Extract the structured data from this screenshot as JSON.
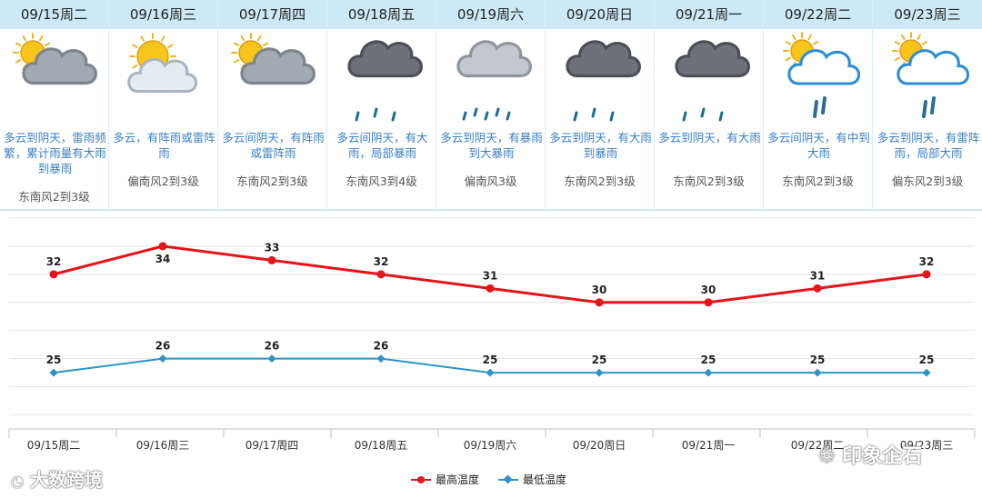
{
  "forecast": {
    "days": [
      {
        "date": "09/15周二",
        "icon": "partly-cloudy-sun-icon",
        "desc": "多云到阴天，雷雨频繁，累计雨量有大雨到暴雨",
        "wind": "东南风2到3级"
      },
      {
        "date": "09/16周三",
        "icon": "sun-behind-cloud-icon",
        "desc": "多云，有阵雨或雷阵雨",
        "wind": "偏南风2到3级"
      },
      {
        "date": "09/17周四",
        "icon": "partly-cloudy-sun-icon",
        "desc": "多云间阴天，有阵雨或雷阵雨",
        "wind": "东南风2到3级"
      },
      {
        "date": "09/18周五",
        "icon": "heavy-rain-cloud-icon",
        "desc": "多云间阴天，有大雨，局部暴雨",
        "wind": "东南风3到4级"
      },
      {
        "date": "09/19周六",
        "icon": "rainstorm-cloud-icon",
        "desc": "多云到阴天，有暴雨到大暴雨",
        "wind": "偏南风3级"
      },
      {
        "date": "09/20周日",
        "icon": "heavy-rain-cloud-icon",
        "desc": "多云到阴天，有大雨到暴雨",
        "wind": "东南风2到3级"
      },
      {
        "date": "09/21周一",
        "icon": "heavy-rain-cloud-icon",
        "desc": "多云到阴天，有大雨",
        "wind": "东南风2到3级"
      },
      {
        "date": "09/22周二",
        "icon": "sun-rain-cloud-icon",
        "desc": "多云间阴天，有中到大雨",
        "wind": "东南风2到3级"
      },
      {
        "date": "09/23周三",
        "icon": "sun-rain-cloud-icon",
        "desc": "多云到阴天，有雷阵雨，局部大雨",
        "wind": "偏东风2到3级"
      }
    ]
  },
  "chart_data": {
    "type": "line",
    "categories": [
      "09/15周二",
      "09/16周三",
      "09/17周四",
      "09/18周五",
      "09/19周六",
      "09/20周日",
      "09/21周一",
      "09/22周二",
      "09/23周三"
    ],
    "series": [
      {
        "name": "最高温度",
        "color": "#e4141b",
        "values": [
          32,
          34,
          33,
          32,
          31,
          30,
          30,
          31,
          32
        ]
      },
      {
        "name": "最低温度",
        "color": "#2d93c9",
        "values": [
          25,
          26,
          26,
          26,
          25,
          25,
          25,
          25,
          25
        ]
      }
    ],
    "ylim": [
      21,
      36
    ],
    "grid": true,
    "legend_position": "bottom-center",
    "title": "",
    "xlabel": "",
    "ylabel": ""
  },
  "watermarks": [
    "大数跨境",
    "印象企石"
  ]
}
